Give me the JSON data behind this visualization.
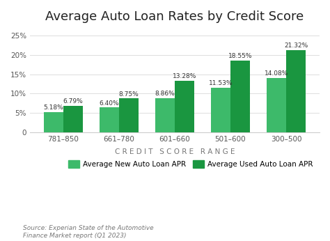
{
  "title": "Average Auto Loan Rates by Credit Score",
  "categories": [
    "781–850",
    "661–780",
    "601–660",
    "501–600",
    "300–500"
  ],
  "new_loan_values": [
    5.18,
    6.4,
    8.86,
    11.53,
    14.08
  ],
  "used_loan_values": [
    6.79,
    8.75,
    13.28,
    18.55,
    21.32
  ],
  "new_loan_color": "#3dba6a",
  "used_loan_color": "#1a9640",
  "xlabel_spaced": "C R E D I T   S C O R E   R A N G E",
  "ylim": [
    0,
    26
  ],
  "yticks": [
    0,
    5,
    10,
    15,
    20,
    25
  ],
  "ytick_labels": [
    "0",
    "5%",
    "10%",
    "15%",
    "20%",
    "25%"
  ],
  "legend_new": "Average New Auto Loan APR",
  "legend_used": "Average Used Auto Loan APR",
  "source_text": "Source: Experian State of the Automotive\nFinance Market report (Q1 2023)",
  "bar_width": 0.35,
  "background_color": "#ffffff",
  "title_fontsize": 13,
  "label_fontsize": 7.5,
  "axis_fontsize": 7.5,
  "source_fontsize": 6.5,
  "value_fontsize": 6.5
}
